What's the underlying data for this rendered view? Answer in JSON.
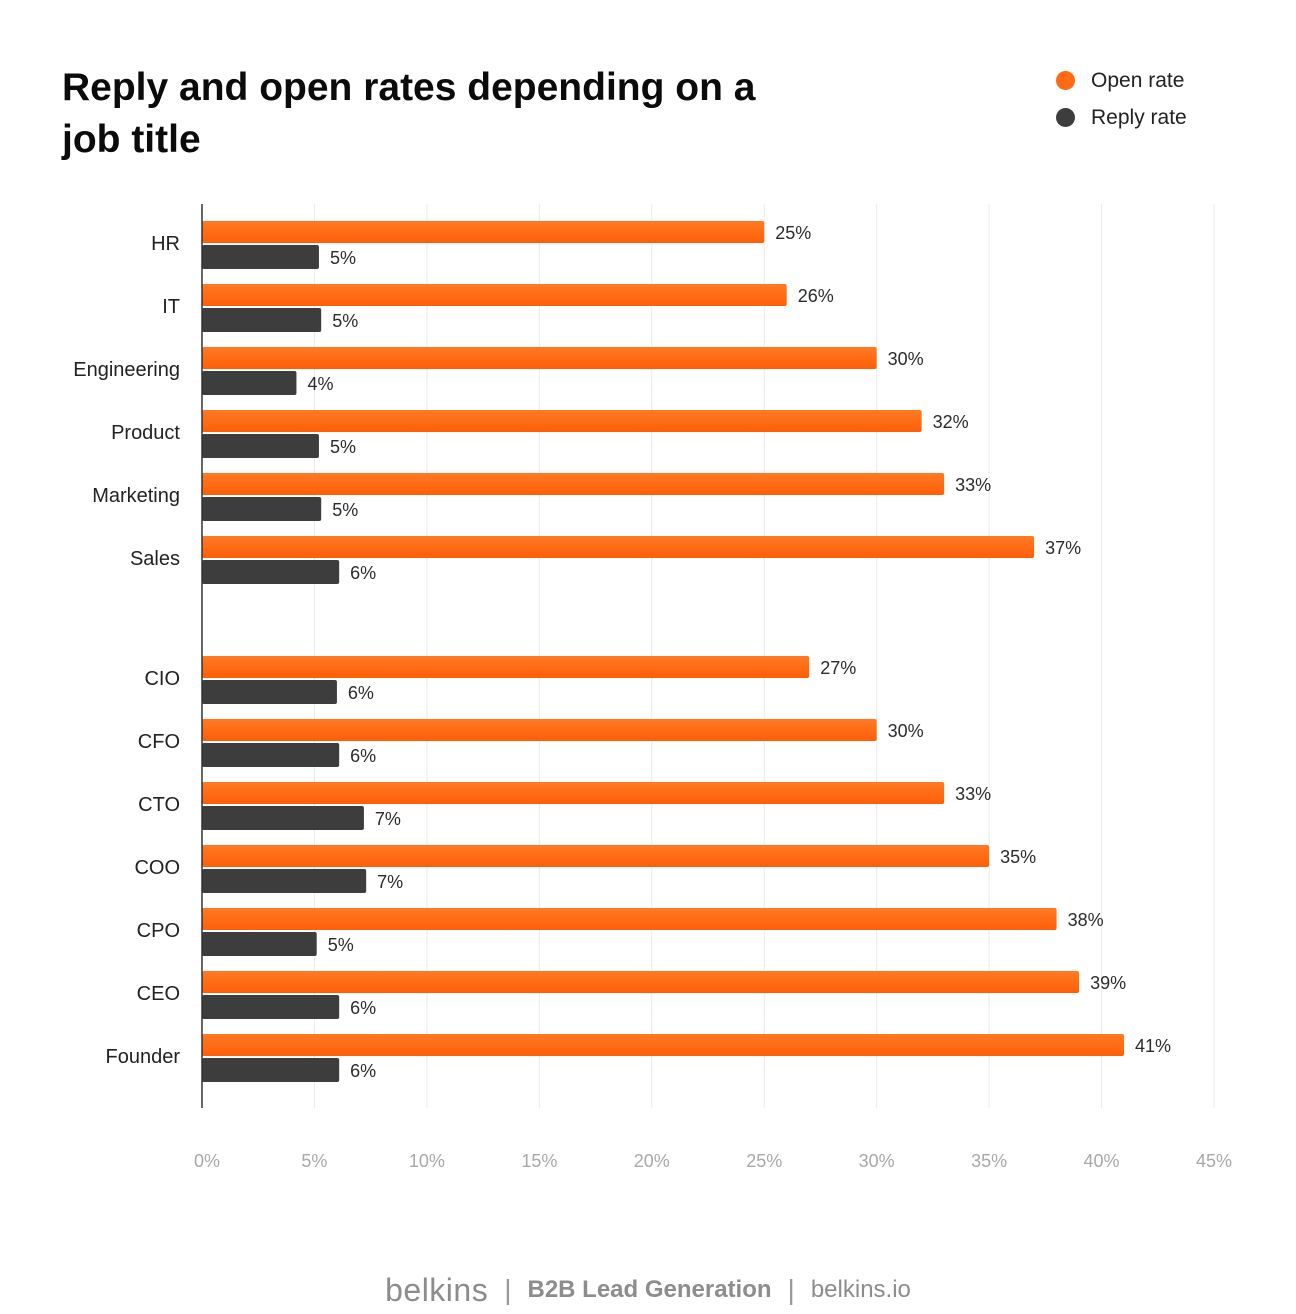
{
  "title": "Reply and open rates depending on a job title",
  "legend": [
    {
      "label": "Open rate",
      "color": "#ff6a13"
    },
    {
      "label": "Reply rate",
      "color": "#3d3d3d"
    }
  ],
  "footer": {
    "brand": "belkins",
    "tagline": "B2B Lead Generation",
    "site": "belkins.io",
    "separator": "|"
  },
  "chart_data": {
    "type": "bar",
    "orientation": "horizontal",
    "categories": [
      "HR",
      "IT",
      "Engineering",
      "Product",
      "Marketing",
      "Sales",
      "CIO",
      "CFO",
      "CTO",
      "COO",
      "CPO",
      "CEO",
      "Founder"
    ],
    "groups": [
      [
        "HR",
        "IT",
        "Engineering",
        "Product",
        "Marketing",
        "Sales"
      ],
      [
        "CIO",
        "CFO",
        "CTO",
        "COO",
        "CPO",
        "CEO",
        "Founder"
      ]
    ],
    "series": [
      {
        "name": "Open rate",
        "color": "#ff6a13",
        "values": [
          25,
          26,
          30,
          32,
          33,
          37,
          27,
          30,
          33,
          35,
          38,
          39,
          41
        ],
        "labels": [
          "25%",
          "26%",
          "30%",
          "32%",
          "33%",
          "37%",
          "27%",
          "30%",
          "33%",
          "35%",
          "38%",
          "39%",
          "41%"
        ]
      },
      {
        "name": "Reply rate",
        "color": "#3d3d3d",
        "values": [
          5.2,
          5.3,
          4.2,
          5.2,
          5.3,
          6.1,
          6,
          6.1,
          7.2,
          7.3,
          5.1,
          6.1,
          6.1
        ],
        "labels": [
          "5%",
          "5%",
          "4%",
          "5%",
          "5%",
          "6%",
          "6%",
          "6%",
          "7%",
          "7%",
          "5%",
          "6%",
          "6%"
        ]
      }
    ],
    "xlim": [
      0,
      45
    ],
    "xticks": [
      0,
      5,
      10,
      15,
      20,
      25,
      30,
      35,
      40,
      45
    ],
    "xtick_labels": [
      "0%",
      "5%",
      "10%",
      "15%",
      "20%",
      "25%",
      "30%",
      "35%",
      "40%",
      "45%"
    ],
    "grid": true,
    "legend_position": "top-right"
  }
}
